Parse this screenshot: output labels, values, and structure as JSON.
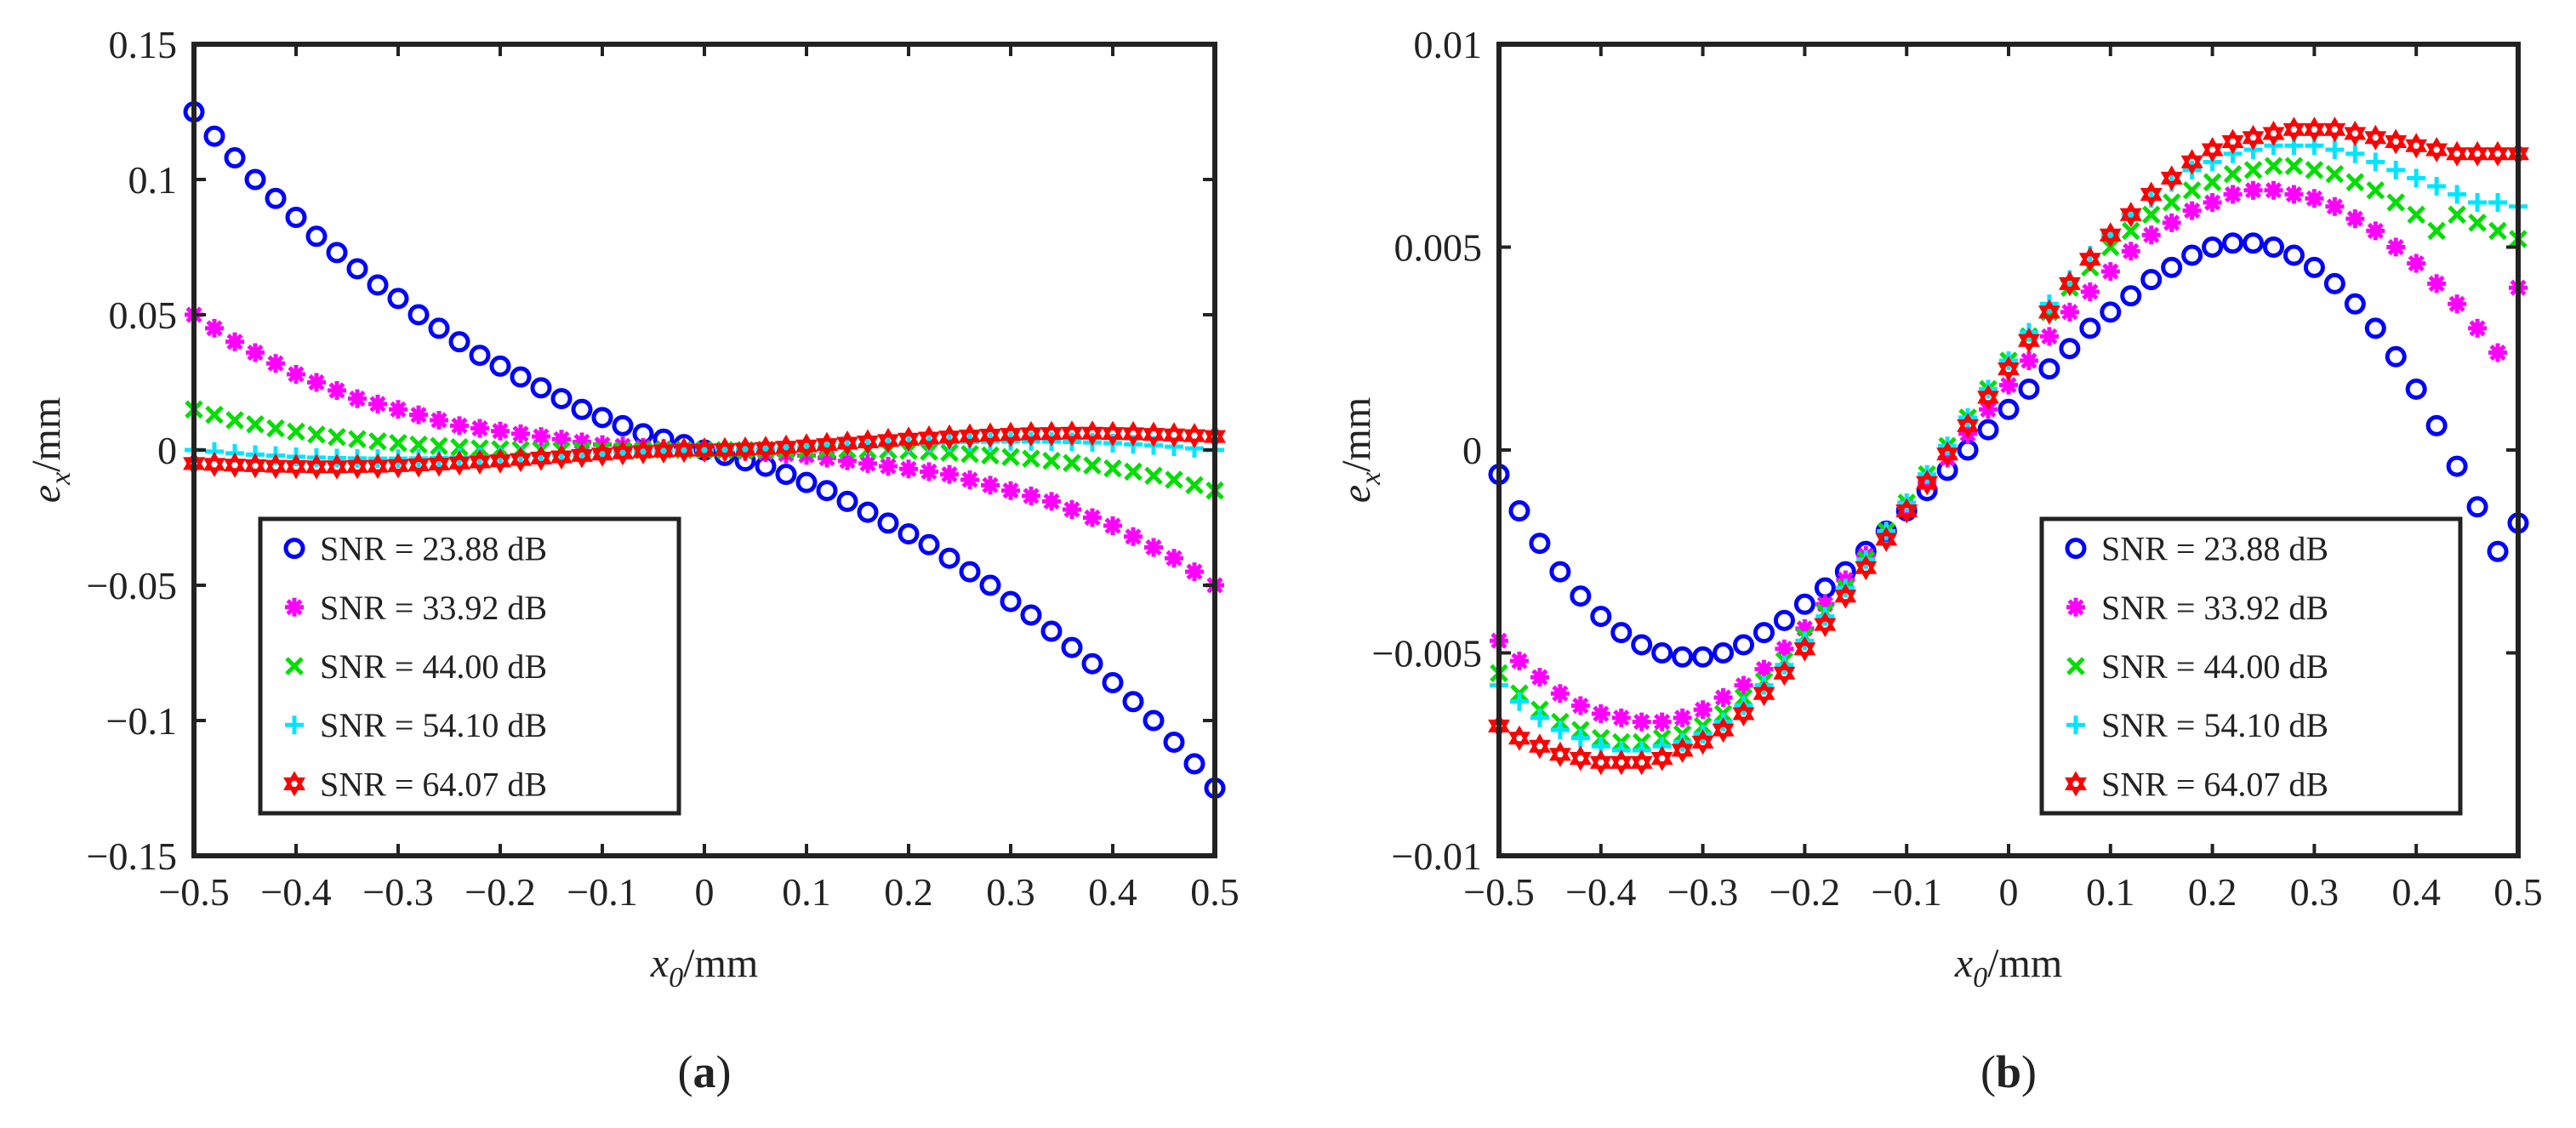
{
  "chart_data": [
    {
      "type": "scatter",
      "panel_label": "(a)",
      "panel_letter": "a",
      "xlabel": {
        "main": "x",
        "sub": "0",
        "unit": "/mm"
      },
      "ylabel": {
        "main": "e",
        "sub": "x",
        "unit": "/mm"
      },
      "xlim": [
        -0.5,
        0.5
      ],
      "ylim": [
        -0.15,
        0.15
      ],
      "xticks": [
        -0.5,
        -0.4,
        -0.3,
        -0.2,
        -0.1,
        0,
        0.1,
        0.2,
        0.3,
        0.4,
        0.5
      ],
      "xtick_labels": [
        "−0.5",
        "−0.4",
        "−0.3",
        "−0.2",
        "−0.1",
        "0",
        "0.1",
        "0.2",
        "0.3",
        "0.4",
        "0.5"
      ],
      "yticks": [
        -0.15,
        -0.1,
        -0.05,
        0,
        0.05,
        0.1,
        0.15
      ],
      "ytick_labels": [
        "−0.15",
        "−0.1",
        "−0.05",
        "0",
        "0.05",
        "0.1",
        "0.15"
      ],
      "legend_position": "bottom-left",
      "x": [
        -0.5,
        -0.48,
        -0.46,
        -0.44,
        -0.42,
        -0.4,
        -0.38,
        -0.36,
        -0.34,
        -0.32,
        -0.3,
        -0.28,
        -0.26,
        -0.24,
        -0.22,
        -0.2,
        -0.18,
        -0.16,
        -0.14,
        -0.12,
        -0.1,
        -0.08,
        -0.06,
        -0.04,
        -0.02,
        0,
        0.02,
        0.04,
        0.06,
        0.08,
        0.1,
        0.12,
        0.14,
        0.16,
        0.18,
        0.2,
        0.22,
        0.24,
        0.26,
        0.28,
        0.3,
        0.32,
        0.34,
        0.36,
        0.38,
        0.4,
        0.42,
        0.44,
        0.46,
        0.48,
        0.5
      ],
      "series": [
        {
          "name": "SNR = 23.88 dB",
          "marker": "circle",
          "color": "#0000ff",
          "values": [
            0.125,
            0.116,
            0.108,
            0.1,
            0.093,
            0.086,
            0.079,
            0.073,
            0.067,
            0.061,
            0.056,
            0.05,
            0.045,
            0.04,
            0.035,
            0.031,
            0.027,
            0.023,
            0.019,
            0.015,
            0.012,
            0.009,
            0.006,
            0.004,
            0.002,
            0,
            -0.002,
            -0.004,
            -0.006,
            -0.009,
            -0.012,
            -0.015,
            -0.019,
            -0.023,
            -0.027,
            -0.031,
            -0.035,
            -0.04,
            -0.045,
            -0.05,
            -0.056,
            -0.061,
            -0.067,
            -0.073,
            -0.079,
            -0.086,
            -0.093,
            -0.1,
            -0.108,
            -0.116,
            -0.125
          ]
        },
        {
          "name": "SNR = 33.92 dB",
          "marker": "star",
          "color": "#ff00ff",
          "values": [
            0.05,
            0.045,
            0.04,
            0.036,
            0.032,
            0.028,
            0.025,
            0.022,
            0.019,
            0.017,
            0.015,
            0.013,
            0.011,
            0.009,
            0.008,
            0.007,
            0.006,
            0.005,
            0.004,
            0.003,
            0.002,
            0.0015,
            0.001,
            0.0005,
            0.0002,
            0,
            -0.0002,
            -0.0005,
            -0.001,
            -0.0015,
            -0.002,
            -0.003,
            -0.004,
            -0.005,
            -0.006,
            -0.007,
            -0.008,
            -0.009,
            -0.011,
            -0.013,
            -0.015,
            -0.017,
            -0.019,
            -0.022,
            -0.025,
            -0.028,
            -0.032,
            -0.036,
            -0.04,
            -0.045,
            -0.05
          ]
        },
        {
          "name": "SNR = 44.00 dB",
          "marker": "x",
          "color": "#00dd00",
          "values": [
            0.015,
            0.013,
            0.011,
            0.0095,
            0.008,
            0.0068,
            0.0057,
            0.0048,
            0.004,
            0.0032,
            0.0026,
            0.002,
            0.0015,
            0.001,
            0.0006,
            0.0003,
            0.0001,
            0,
            -0.0001,
            -0.0001,
            -0.0001,
            -0.0001,
            -0.0001,
            0,
            0,
            0,
            0,
            0,
            0.0001,
            0.0001,
            0.0001,
            0.0001,
            0.0001,
            0,
            -0.0001,
            -0.0003,
            -0.0006,
            -0.001,
            -0.0015,
            -0.002,
            -0.0026,
            -0.0032,
            -0.004,
            -0.0048,
            -0.0057,
            -0.0068,
            -0.008,
            -0.0095,
            -0.011,
            -0.013,
            -0.015
          ]
        },
        {
          "name": "SNR = 54.10 dB",
          "marker": "plus",
          "color": "#00e5ff",
          "values": [
            0,
            -0.0006,
            -0.0012,
            -0.0017,
            -0.0021,
            -0.0025,
            -0.0028,
            -0.003,
            -0.0031,
            -0.0032,
            -0.0032,
            -0.0031,
            -0.003,
            -0.0028,
            -0.0026,
            -0.0024,
            -0.0021,
            -0.0018,
            -0.0015,
            -0.0012,
            -0.0009,
            -0.0006,
            -0.0004,
            -0.0002,
            -0.0001,
            0,
            0.0001,
            0.0002,
            0.0004,
            0.0006,
            0.0009,
            0.0012,
            0.0015,
            0.0018,
            0.0021,
            0.0024,
            0.0026,
            0.0028,
            0.003,
            0.0031,
            0.0032,
            0.0032,
            0.0031,
            0.003,
            0.0028,
            0.0025,
            0.0021,
            0.0017,
            0.0012,
            0.0006,
            0
          ]
        },
        {
          "name": "SNR = 64.07 dB",
          "marker": "hexagram",
          "color": "#ff0000",
          "values": [
            -0.005,
            -0.0053,
            -0.0056,
            -0.0058,
            -0.006,
            -0.0061,
            -0.0062,
            -0.0062,
            -0.0061,
            -0.006,
            -0.0058,
            -0.0055,
            -0.0052,
            -0.0048,
            -0.0044,
            -0.004,
            -0.0035,
            -0.003,
            -0.0025,
            -0.002,
            -0.0015,
            -0.001,
            -0.0006,
            -0.0003,
            -0.0001,
            0,
            0.0001,
            0.0003,
            0.0006,
            0.001,
            0.0015,
            0.002,
            0.0025,
            0.003,
            0.0035,
            0.004,
            0.0044,
            0.0048,
            0.0052,
            0.0055,
            0.0058,
            0.006,
            0.0061,
            0.0062,
            0.0062,
            0.0061,
            0.006,
            0.0058,
            0.0056,
            0.0053,
            0.005
          ]
        }
      ]
    },
    {
      "type": "scatter",
      "panel_label": "(b)",
      "panel_letter": "b",
      "xlabel": {
        "main": "x",
        "sub": "0",
        "unit": "/mm"
      },
      "ylabel": {
        "main": "e",
        "sub": "x",
        "unit": "/mm"
      },
      "xlim": [
        -0.5,
        0.5
      ],
      "ylim": [
        -0.01,
        0.01
      ],
      "xticks": [
        -0.5,
        -0.4,
        -0.3,
        -0.2,
        -0.1,
        0,
        0.1,
        0.2,
        0.3,
        0.4,
        0.5
      ],
      "xtick_labels": [
        "−0.5",
        "−0.4",
        "−0.3",
        "−0.2",
        "−0.1",
        "0",
        "0.1",
        "0.2",
        "0.3",
        "0.4",
        "0.5"
      ],
      "yticks": [
        -0.01,
        -0.005,
        0,
        0.005,
        0.01
      ],
      "ytick_labels": [
        "−0.01",
        "−0.005",
        "0",
        "0.005",
        "0.01"
      ],
      "legend_position": "bottom-right",
      "x": [
        -0.5,
        -0.48,
        -0.46,
        -0.44,
        -0.42,
        -0.4,
        -0.38,
        -0.36,
        -0.34,
        -0.32,
        -0.3,
        -0.28,
        -0.26,
        -0.24,
        -0.22,
        -0.2,
        -0.18,
        -0.16,
        -0.14,
        -0.12,
        -0.1,
        -0.08,
        -0.06,
        -0.04,
        -0.02,
        0,
        0.02,
        0.04,
        0.06,
        0.08,
        0.1,
        0.12,
        0.14,
        0.16,
        0.18,
        0.2,
        0.22,
        0.24,
        0.26,
        0.28,
        0.3,
        0.32,
        0.34,
        0.36,
        0.38,
        0.4,
        0.42,
        0.44,
        0.46,
        0.48,
        0.5
      ],
      "series": [
        {
          "name": "SNR = 23.88 dB",
          "marker": "circle",
          "color": "#0000ff",
          "values": [
            -0.0006,
            -0.0015,
            -0.0023,
            -0.003,
            -0.0036,
            -0.0041,
            -0.0045,
            -0.0048,
            -0.005,
            -0.0051,
            -0.0051,
            -0.005,
            -0.0048,
            -0.0045,
            -0.0042,
            -0.0038,
            -0.0034,
            -0.003,
            -0.0025,
            -0.002,
            -0.0015,
            -0.001,
            -0.0005,
            0,
            0.0005,
            0.001,
            0.0015,
            0.002,
            0.0025,
            0.003,
            0.0034,
            0.0038,
            0.0042,
            0.0045,
            0.0048,
            0.005,
            0.0051,
            0.0051,
            0.005,
            0.0048,
            0.0045,
            0.0041,
            0.0036,
            0.003,
            0.0023,
            0.0015,
            0.0006,
            -0.0004,
            -0.0014,
            -0.0025,
            -0.0018
          ]
        },
        {
          "name": "SNR = 33.92 dB",
          "marker": "star",
          "color": "#ff00ff",
          "values": [
            -0.0047,
            -0.0052,
            -0.0056,
            -0.006,
            -0.0063,
            -0.0065,
            -0.0066,
            -0.0067,
            -0.0067,
            -0.0066,
            -0.0064,
            -0.0061,
            -0.0058,
            -0.0054,
            -0.0049,
            -0.0044,
            -0.0038,
            -0.0032,
            -0.0026,
            -0.002,
            -0.0014,
            -0.0008,
            -0.0002,
            0.0004,
            0.001,
            0.0016,
            0.0022,
            0.0028,
            0.0034,
            0.0039,
            0.0044,
            0.0049,
            0.0053,
            0.0056,
            0.0059,
            0.0061,
            0.0063,
            0.0064,
            0.0064,
            0.0063,
            0.0062,
            0.006,
            0.0057,
            0.0054,
            0.005,
            0.0046,
            0.0041,
            0.0036,
            0.003,
            0.0024,
            0.004
          ]
        },
        {
          "name": "SNR = 44.00 dB",
          "marker": "x",
          "color": "#00dd00",
          "values": [
            -0.0055,
            -0.006,
            -0.0064,
            -0.0067,
            -0.0069,
            -0.0071,
            -0.0072,
            -0.0072,
            -0.0071,
            -0.007,
            -0.0068,
            -0.0065,
            -0.0061,
            -0.0057,
            -0.0052,
            -0.0046,
            -0.004,
            -0.0034,
            -0.0027,
            -0.002,
            -0.0013,
            -0.0006,
            0.0001,
            0.0008,
            0.0015,
            0.0022,
            0.0028,
            0.0034,
            0.004,
            0.0045,
            0.005,
            0.0054,
            0.0058,
            0.0061,
            0.0064,
            0.0066,
            0.0068,
            0.0069,
            0.007,
            0.007,
            0.0069,
            0.0068,
            0.0066,
            0.0064,
            0.0061,
            0.0058,
            0.0054,
            0.0058,
            0.0056,
            0.0054,
            0.0052
          ]
        },
        {
          "name": "SNR = 54.10 dB",
          "marker": "plus",
          "color": "#00e5ff",
          "values": [
            -0.0058,
            -0.0062,
            -0.0066,
            -0.0069,
            -0.0071,
            -0.0073,
            -0.0074,
            -0.0074,
            -0.0073,
            -0.0072,
            -0.007,
            -0.0067,
            -0.0063,
            -0.0058,
            -0.0053,
            -0.0047,
            -0.0041,
            -0.0034,
            -0.0027,
            -0.002,
            -0.0013,
            -0.0006,
            0.0001,
            0.0008,
            0.0015,
            0.0022,
            0.0029,
            0.0036,
            0.0042,
            0.0048,
            0.0053,
            0.0058,
            0.0062,
            0.0066,
            0.0069,
            0.0071,
            0.0073,
            0.0074,
            0.0075,
            0.0075,
            0.0075,
            0.0074,
            0.0073,
            0.0071,
            0.0069,
            0.0067,
            0.0065,
            0.0063,
            0.0061,
            0.0061,
            0.006
          ]
        },
        {
          "name": "SNR = 64.07 dB",
          "marker": "hexagram",
          "color": "#ff0000",
          "values": [
            -0.0068,
            -0.0071,
            -0.0073,
            -0.0075,
            -0.0076,
            -0.0077,
            -0.0077,
            -0.0077,
            -0.0076,
            -0.0074,
            -0.0072,
            -0.0069,
            -0.0065,
            -0.006,
            -0.0055,
            -0.0049,
            -0.0043,
            -0.0036,
            -0.0029,
            -0.0022,
            -0.0015,
            -0.0008,
            -0.0001,
            0.0006,
            0.0013,
            0.002,
            0.0027,
            0.0034,
            0.0041,
            0.0047,
            0.0053,
            0.0058,
            0.0063,
            0.0067,
            0.0071,
            0.0074,
            0.0076,
            0.0077,
            0.0078,
            0.0079,
            0.0079,
            0.0079,
            0.0078,
            0.0077,
            0.0076,
            0.0075,
            0.0074,
            0.0073,
            0.0073,
            0.0073,
            0.0073
          ]
        }
      ]
    }
  ]
}
